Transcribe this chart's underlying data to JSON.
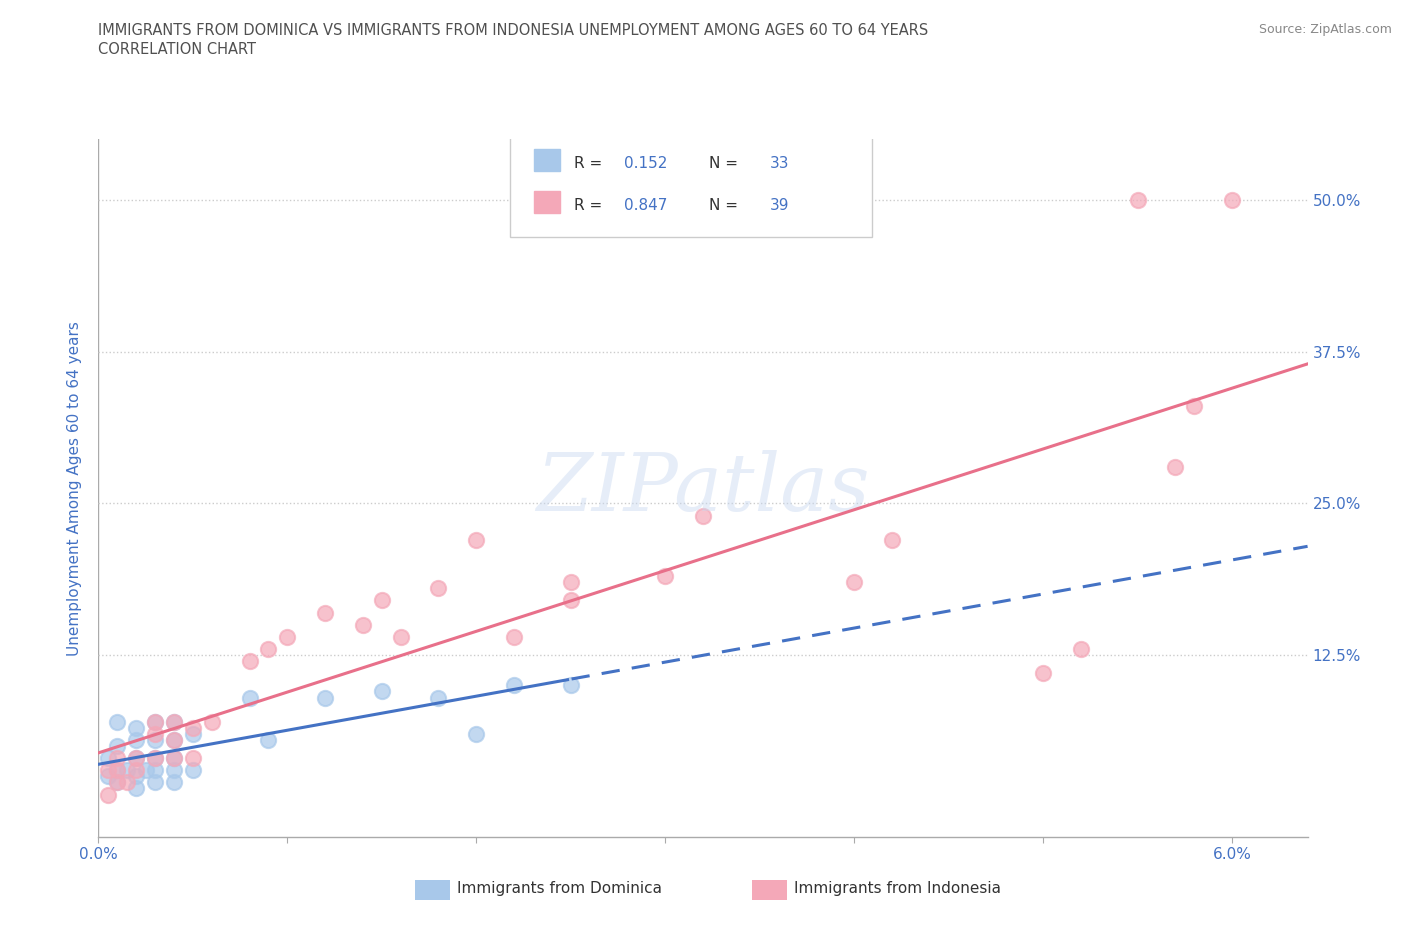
{
  "title_line1": "IMMIGRANTS FROM DOMINICA VS IMMIGRANTS FROM INDONESIA UNEMPLOYMENT AMONG AGES 60 TO 64 YEARS",
  "title_line2": "CORRELATION CHART",
  "source": "Source: ZipAtlas.com",
  "ylabel": "Unemployment Among Ages 60 to 64 years",
  "watermark": "ZIPatlas",
  "dominica_color": "#a8c8ea",
  "indonesia_color": "#f4a8b8",
  "dominica_line_color": "#4472c4",
  "indonesia_line_color": "#e8708a",
  "R_dominica": "0.152",
  "N_dominica": "33",
  "R_indonesia": "0.847",
  "N_indonesia": "39",
  "legend_label1": "Immigrants from Dominica",
  "legend_label2": "Immigrants from Indonesia",
  "yticks": [
    0.0,
    0.125,
    0.25,
    0.375,
    0.5
  ],
  "ytick_labels": [
    "",
    "12.5%",
    "25.0%",
    "37.5%",
    "50.0%"
  ],
  "xlim": [
    0.0,
    0.064
  ],
  "ylim": [
    -0.025,
    0.55
  ],
  "dominica_x": [
    0.0005,
    0.0005,
    0.001,
    0.001,
    0.001,
    0.001,
    0.0015,
    0.002,
    0.002,
    0.002,
    0.002,
    0.002,
    0.0025,
    0.003,
    0.003,
    0.003,
    0.003,
    0.003,
    0.004,
    0.004,
    0.004,
    0.004,
    0.004,
    0.005,
    0.005,
    0.008,
    0.009,
    0.012,
    0.015,
    0.018,
    0.02,
    0.022,
    0.025
  ],
  "dominica_y": [
    0.025,
    0.04,
    0.02,
    0.03,
    0.05,
    0.07,
    0.03,
    0.015,
    0.025,
    0.04,
    0.055,
    0.065,
    0.03,
    0.02,
    0.03,
    0.04,
    0.055,
    0.07,
    0.02,
    0.03,
    0.04,
    0.055,
    0.07,
    0.03,
    0.06,
    0.09,
    0.055,
    0.09,
    0.095,
    0.09,
    0.06,
    0.1,
    0.1
  ],
  "indonesia_x": [
    0.0005,
    0.0005,
    0.001,
    0.001,
    0.001,
    0.0015,
    0.002,
    0.002,
    0.003,
    0.003,
    0.003,
    0.004,
    0.004,
    0.004,
    0.005,
    0.005,
    0.006,
    0.008,
    0.009,
    0.01,
    0.012,
    0.014,
    0.015,
    0.016,
    0.018,
    0.02,
    0.022,
    0.025,
    0.025,
    0.03,
    0.032,
    0.04,
    0.042,
    0.05,
    0.052,
    0.055,
    0.057,
    0.058,
    0.06
  ],
  "indonesia_y": [
    0.01,
    0.03,
    0.02,
    0.03,
    0.04,
    0.02,
    0.03,
    0.04,
    0.04,
    0.06,
    0.07,
    0.04,
    0.055,
    0.07,
    0.04,
    0.065,
    0.07,
    0.12,
    0.13,
    0.14,
    0.16,
    0.15,
    0.17,
    0.14,
    0.18,
    0.22,
    0.14,
    0.17,
    0.185,
    0.19,
    0.24,
    0.185,
    0.22,
    0.11,
    0.13,
    0.5,
    0.28,
    0.33,
    0.5
  ],
  "title_color": "#505050",
  "axis_label_color": "#4472c4",
  "grid_color": "#cccccc",
  "background_color": "#ffffff"
}
